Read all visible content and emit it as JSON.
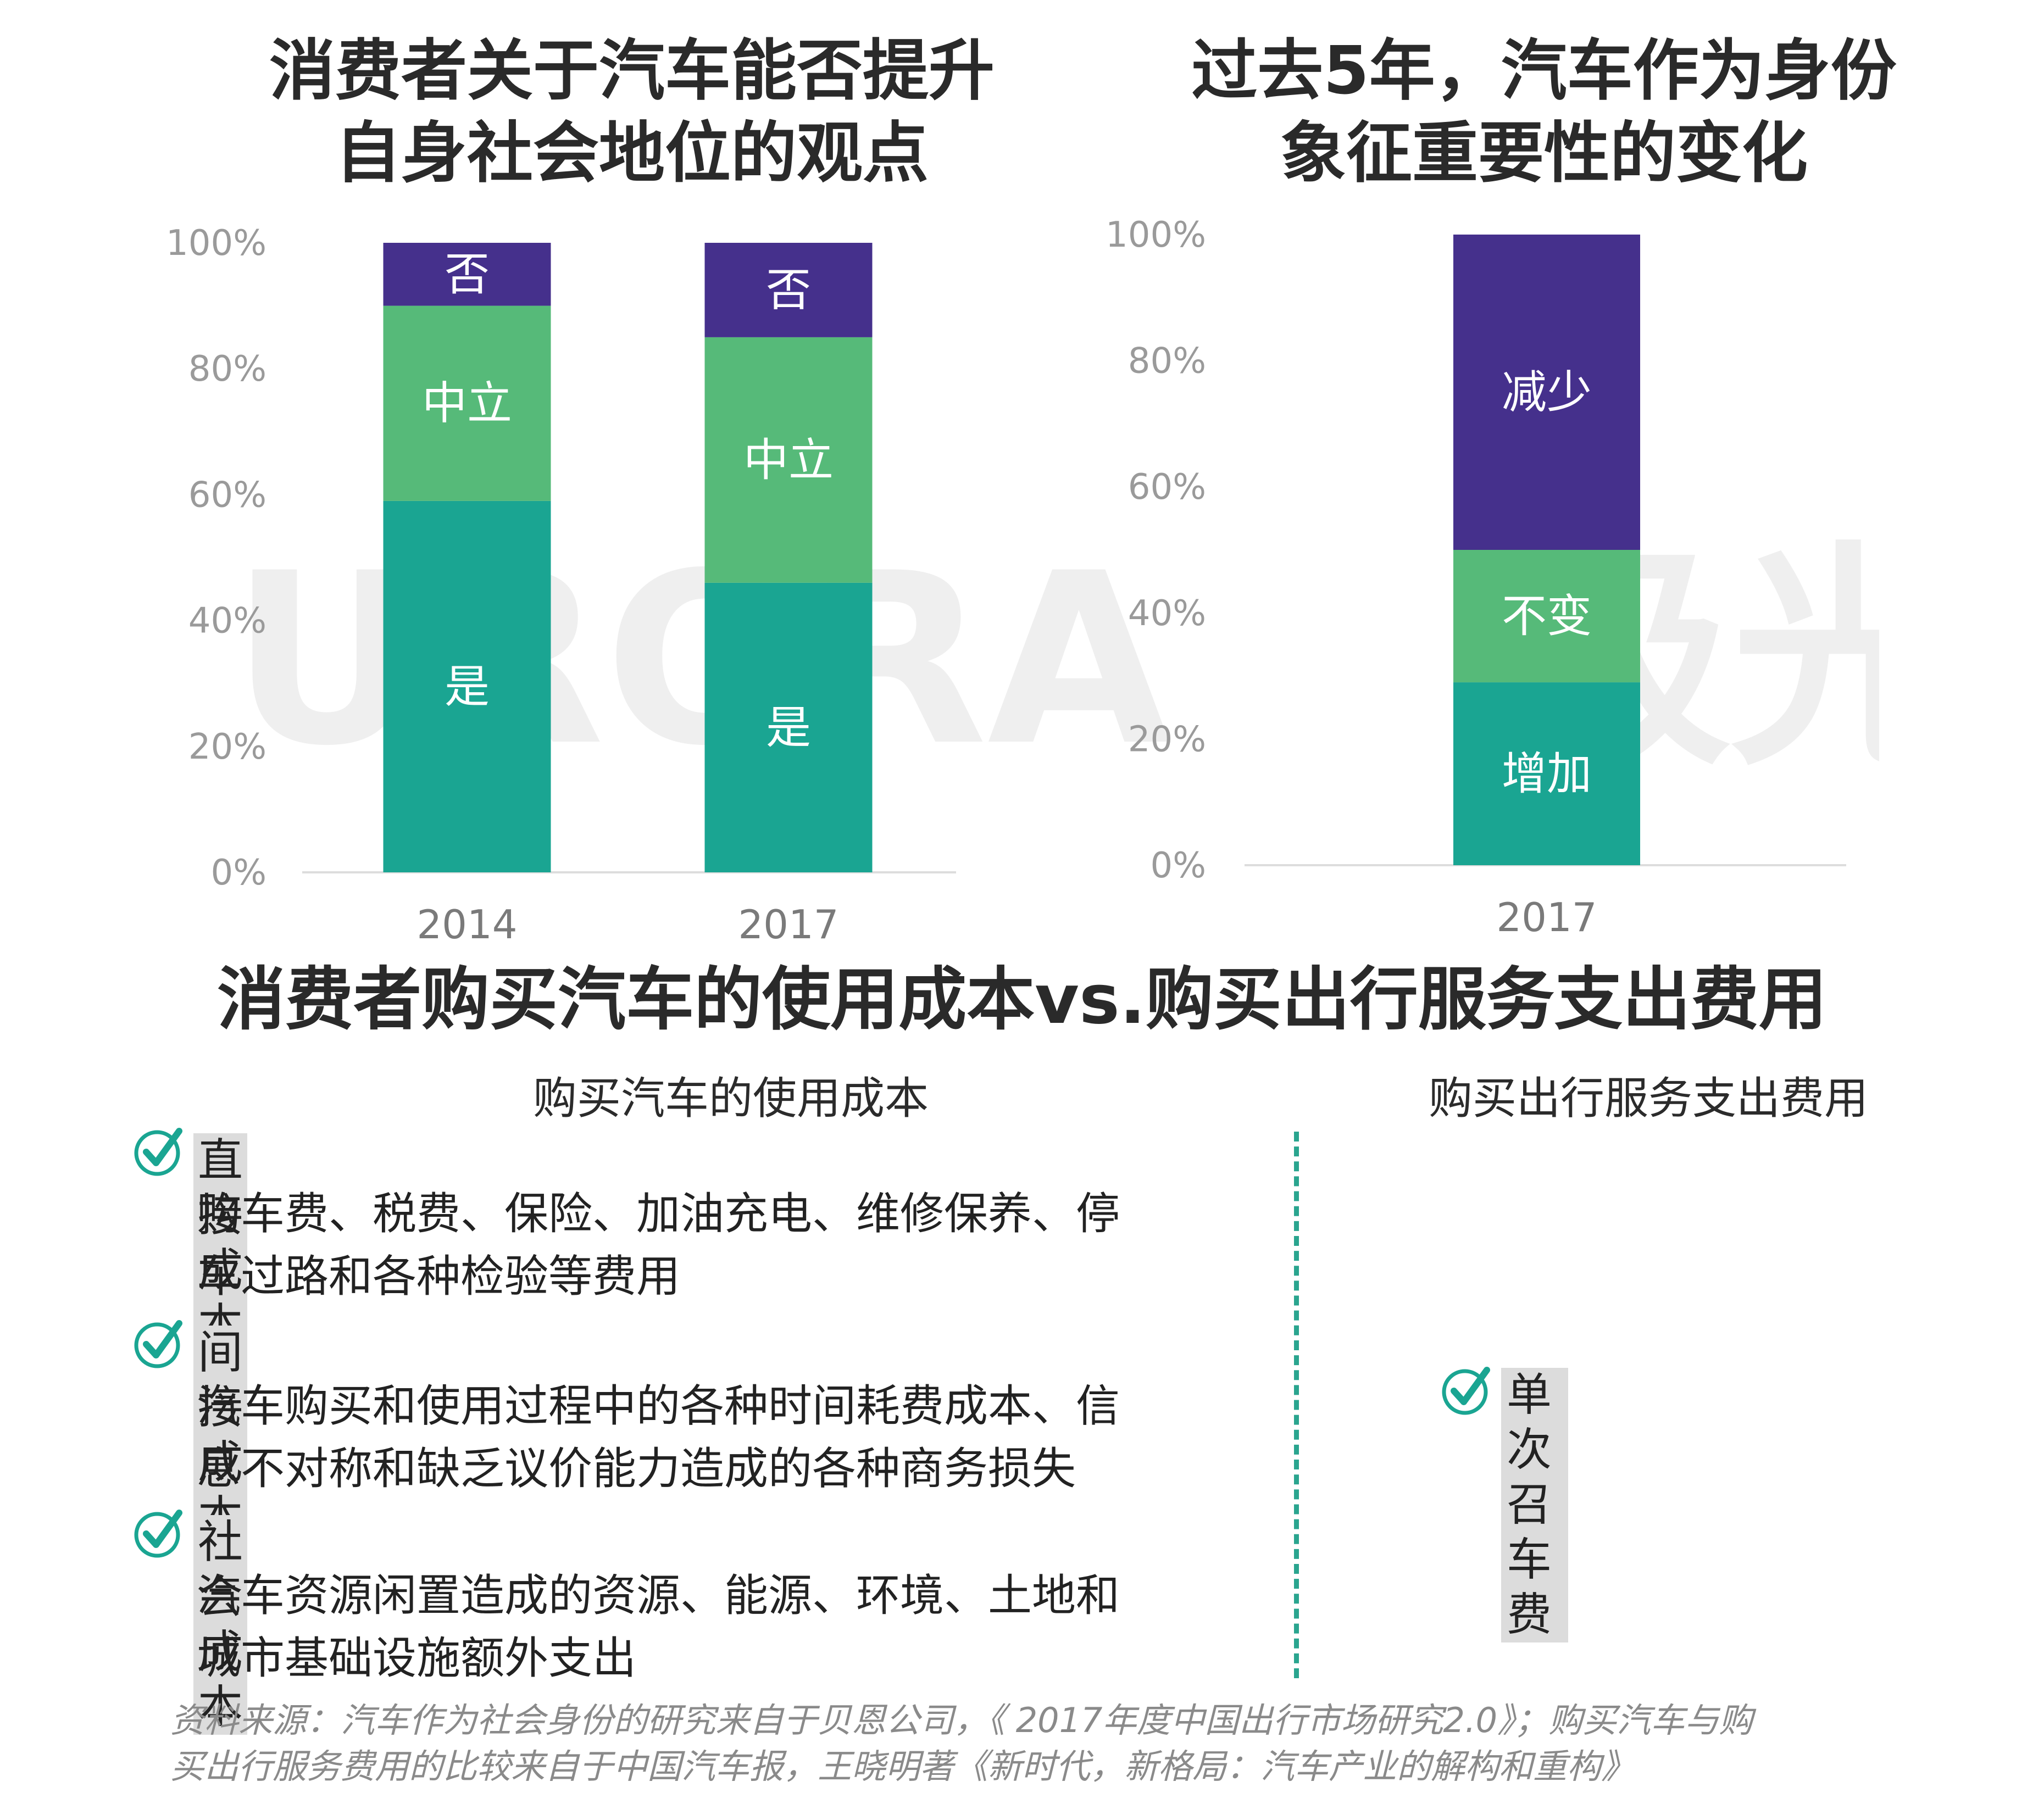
{
  "colors": {
    "yes": "#1aa592",
    "neutral": "#56ba79",
    "no": "#45308c",
    "increase": "#1aa592",
    "unchanged": "#56ba79",
    "decrease": "#45308c",
    "divider": "#2aa58f",
    "check": "#1aa592"
  },
  "watermark": {
    "text": "URORA",
    "cn_text": "极光"
  },
  "left_chart": {
    "title": "消费者关于汽车能否提升\n自身社会地位的观点"
  },
  "right_chart": {
    "title": "过去5年，汽车作为身份\n象征重要性的变化"
  },
  "chart_data": [
    {
      "type": "bar",
      "stacked": true,
      "title": "消费者关于汽车能否提升自身社会地位的观点",
      "categories": [
        "2014",
        "2017"
      ],
      "series": [
        {
          "name": "是",
          "values": [
            59,
            46
          ]
        },
        {
          "name": "中立",
          "values": [
            31,
            39
          ]
        },
        {
          "name": "否",
          "values": [
            10,
            15
          ]
        }
      ],
      "ylim": [
        0,
        100
      ],
      "yticks": [
        "0%",
        "20%",
        "40%",
        "60%",
        "80%",
        "100%"
      ],
      "xlabel": "",
      "ylabel": "",
      "legend": "none"
    },
    {
      "type": "bar",
      "stacked": true,
      "title": "过去5年，汽车作为身份象征重要性的变化",
      "categories": [
        "2017"
      ],
      "series": [
        {
          "name": "增加",
          "values": [
            29
          ]
        },
        {
          "name": "不变",
          "values": [
            21
          ]
        },
        {
          "name": "减少",
          "values": [
            50
          ]
        }
      ],
      "ylim": [
        0,
        100
      ],
      "yticks": [
        "0%",
        "20%",
        "40%",
        "60%",
        "80%",
        "100%"
      ],
      "xlabel": "",
      "ylabel": "",
      "legend": "none"
    }
  ],
  "comparison": {
    "title": "消费者购买汽车的使用成本vs.购买出行服务支出费用",
    "left_heading": "购买汽车的使用成本",
    "right_heading": "购买出行服务支出费用",
    "costs": [
      {
        "head": "直接成本",
        "desc": "购车费、税费、保险、加油充电、维修保养、停\n车过路和各种检验等费用"
      },
      {
        "head": "间接成本",
        "desc": "汽车购买和使用过程中的各种时间耗费成本、信\n息不对称和缺乏议价能力造成的各种商务损失"
      },
      {
        "head": "社会成本",
        "desc": "汽车资源闲置造成的资源、能源、环境、土地和\n城市基础设施额外支出"
      }
    ],
    "service_item": "单次召车费"
  },
  "source": "资料来源：汽车作为社会身份的研究来自于贝恩公司，《 2017年度中国出行市场研究2.0》；购买汽车与购\n买出行服务费用的比较来自于中国汽车报，王晓明著《新时代，新格局：汽车产业的解构和重构》"
}
